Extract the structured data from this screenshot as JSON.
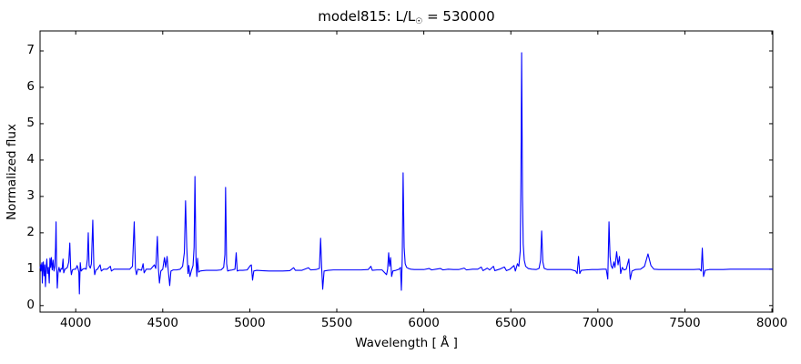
{
  "figure": {
    "title_prefix": "model815: L/L",
    "title_sub": "☉",
    "title_suffix": " = 530000",
    "background_color": "#ffffff",
    "frame_color": "#000000"
  },
  "chart_data": {
    "type": "line",
    "title": "model815: L/L☉ = 530000",
    "xlabel": "Wavelength [ Å ]",
    "ylabel": "Normalized flux",
    "xlim": [
      3795,
      8005
    ],
    "ylim": [
      -0.18,
      7.55
    ],
    "xticks": [
      4000,
      4500,
      5000,
      5500,
      6000,
      6500,
      7000,
      7500,
      8000
    ],
    "yticks": [
      0,
      1,
      2,
      3,
      4,
      5,
      6,
      7
    ],
    "grid": false,
    "legend": "none",
    "line_color": "#0000ff",
    "series": [
      {
        "name": "spectrum",
        "points": [
          [
            3795,
            1.02
          ],
          [
            3798,
            1.12
          ],
          [
            3800,
            0.95
          ],
          [
            3803,
            1.1
          ],
          [
            3806,
            1.18
          ],
          [
            3808,
            0.62
          ],
          [
            3811,
            1.02
          ],
          [
            3814,
            1.2
          ],
          [
            3818,
            0.82
          ],
          [
            3822,
            1.12
          ],
          [
            3826,
            0.52
          ],
          [
            3830,
            1.05
          ],
          [
            3834,
            1.28
          ],
          [
            3838,
            0.88
          ],
          [
            3843,
            1.05
          ],
          [
            3848,
            0.62
          ],
          [
            3852,
            1.3
          ],
          [
            3856,
            1.05
          ],
          [
            3860,
            1.32
          ],
          [
            3865,
            0.98
          ],
          [
            3870,
            1.25
          ],
          [
            3875,
            0.95
          ],
          [
            3880,
            1.08
          ],
          [
            3884,
            1.6
          ],
          [
            3887,
            2.3
          ],
          [
            3890,
            1.1
          ],
          [
            3894,
            0.48
          ],
          [
            3899,
            0.92
          ],
          [
            3904,
            1.05
          ],
          [
            3910,
            0.92
          ],
          [
            3916,
            1.02
          ],
          [
            3922,
            1.0
          ],
          [
            3927,
            1.28
          ],
          [
            3931,
            0.9
          ],
          [
            3938,
            1.0
          ],
          [
            3945,
            1.02
          ],
          [
            3952,
            1.05
          ],
          [
            3960,
            1.2
          ],
          [
            3966,
            1.72
          ],
          [
            3971,
            1.02
          ],
          [
            3975,
            0.85
          ],
          [
            3981,
            0.98
          ],
          [
            3990,
            1.0
          ],
          [
            4000,
            1.0
          ],
          [
            4008,
            1.1
          ],
          [
            4013,
            1.02
          ],
          [
            4018,
            0.92
          ],
          [
            4021,
            0.32
          ],
          [
            4026,
            1.18
          ],
          [
            4031,
            0.95
          ],
          [
            4040,
            1.0
          ],
          [
            4052,
            1.02
          ],
          [
            4060,
            1.0
          ],
          [
            4067,
            1.28
          ],
          [
            4072,
            2.0
          ],
          [
            4077,
            1.1
          ],
          [
            4084,
            1.03
          ],
          [
            4090,
            1.15
          ],
          [
            4098,
            2.35
          ],
          [
            4104,
            1.1
          ],
          [
            4109,
            0.85
          ],
          [
            4116,
            0.98
          ],
          [
            4125,
            1.0
          ],
          [
            4140,
            1.12
          ],
          [
            4147,
            0.95
          ],
          [
            4160,
            1.0
          ],
          [
            4180,
            1.0
          ],
          [
            4199,
            1.08
          ],
          [
            4205,
            0.95
          ],
          [
            4220,
            1.0
          ],
          [
            4250,
            1.0
          ],
          [
            4280,
            1.0
          ],
          [
            4310,
            1.0
          ],
          [
            4326,
            1.08
          ],
          [
            4336,
            2.3
          ],
          [
            4343,
            1.02
          ],
          [
            4349,
            0.85
          ],
          [
            4357,
            1.0
          ],
          [
            4378,
            0.97
          ],
          [
            4387,
            1.15
          ],
          [
            4393,
            0.9
          ],
          [
            4405,
            1.0
          ],
          [
            4430,
            1.0
          ],
          [
            4452,
            1.12
          ],
          [
            4460,
            1.02
          ],
          [
            4469,
            1.9
          ],
          [
            4475,
            1.02
          ],
          [
            4481,
            0.62
          ],
          [
            4489,
            0.95
          ],
          [
            4500,
            1.0
          ],
          [
            4510,
            1.32
          ],
          [
            4517,
            1.05
          ],
          [
            4525,
            1.35
          ],
          [
            4531,
            1.0
          ],
          [
            4540,
            0.55
          ],
          [
            4547,
            0.95
          ],
          [
            4560,
            0.98
          ],
          [
            4580,
            0.98
          ],
          [
            4600,
            1.0
          ],
          [
            4614,
            1.08
          ],
          [
            4624,
            1.45
          ],
          [
            4631,
            2.88
          ],
          [
            4638,
            1.6
          ],
          [
            4645,
            0.88
          ],
          [
            4650,
            1.1
          ],
          [
            4656,
            0.8
          ],
          [
            4664,
            0.95
          ],
          [
            4674,
            1.1
          ],
          [
            4680,
            1.6
          ],
          [
            4685,
            3.55
          ],
          [
            4691,
            1.25
          ],
          [
            4696,
            0.8
          ],
          [
            4700,
            1.3
          ],
          [
            4706,
            0.92
          ],
          [
            4715,
            0.95
          ],
          [
            4730,
            0.96
          ],
          [
            4750,
            0.97
          ],
          [
            4780,
            0.97
          ],
          [
            4810,
            0.97
          ],
          [
            4835,
            0.98
          ],
          [
            4850,
            1.05
          ],
          [
            4857,
            1.4
          ],
          [
            4861,
            3.25
          ],
          [
            4867,
            1.15
          ],
          [
            4873,
            0.95
          ],
          [
            4885,
            0.97
          ],
          [
            4900,
            0.98
          ],
          [
            4915,
            1.0
          ],
          [
            4922,
            1.45
          ],
          [
            4928,
            0.95
          ],
          [
            4940,
            0.97
          ],
          [
            4960,
            0.97
          ],
          [
            4985,
            0.98
          ],
          [
            5003,
            1.1
          ],
          [
            5009,
            1.12
          ],
          [
            5016,
            0.7
          ],
          [
            5023,
            0.95
          ],
          [
            5040,
            0.97
          ],
          [
            5070,
            0.96
          ],
          [
            5110,
            0.95
          ],
          [
            5150,
            0.95
          ],
          [
            5190,
            0.95
          ],
          [
            5230,
            0.96
          ],
          [
            5252,
            1.04
          ],
          [
            5262,
            0.97
          ],
          [
            5300,
            0.97
          ],
          [
            5337,
            1.04
          ],
          [
            5350,
            0.98
          ],
          [
            5380,
            0.99
          ],
          [
            5400,
            1.02
          ],
          [
            5407,
            1.85
          ],
          [
            5413,
            1.05
          ],
          [
            5419,
            0.45
          ],
          [
            5427,
            0.95
          ],
          [
            5450,
            0.97
          ],
          [
            5480,
            0.98
          ],
          [
            5520,
            0.98
          ],
          [
            5560,
            0.98
          ],
          [
            5600,
            0.98
          ],
          [
            5640,
            0.98
          ],
          [
            5680,
            0.99
          ],
          [
            5696,
            1.08
          ],
          [
            5704,
            0.97
          ],
          [
            5730,
            0.98
          ],
          [
            5760,
            0.98
          ],
          [
            5786,
            0.85
          ],
          [
            5792,
            1.0
          ],
          [
            5798,
            1.45
          ],
          [
            5803,
            1.08
          ],
          [
            5809,
            1.32
          ],
          [
            5815,
            0.8
          ],
          [
            5822,
            0.95
          ],
          [
            5840,
            0.97
          ],
          [
            5858,
            1.0
          ],
          [
            5866,
            1.05
          ],
          [
            5871,
            0.42
          ],
          [
            5876,
            1.3
          ],
          [
            5881,
            3.65
          ],
          [
            5887,
            1.6
          ],
          [
            5893,
            1.15
          ],
          [
            5901,
            1.05
          ],
          [
            5912,
            1.02
          ],
          [
            5925,
            1.0
          ],
          [
            5945,
            0.99
          ],
          [
            5970,
            0.99
          ],
          [
            6000,
            0.99
          ],
          [
            6030,
            1.02
          ],
          [
            6045,
            0.98
          ],
          [
            6070,
            1.0
          ],
          [
            6095,
            1.02
          ],
          [
            6110,
            0.98
          ],
          [
            6140,
            1.0
          ],
          [
            6170,
            0.99
          ],
          [
            6200,
            0.99
          ],
          [
            6232,
            1.03
          ],
          [
            6245,
            0.98
          ],
          [
            6280,
            1.0
          ],
          [
            6310,
            1.0
          ],
          [
            6330,
            1.06
          ],
          [
            6340,
            0.96
          ],
          [
            6365,
            1.03
          ],
          [
            6378,
            0.98
          ],
          [
            6400,
            1.08
          ],
          [
            6408,
            0.96
          ],
          [
            6435,
            1.0
          ],
          [
            6463,
            1.06
          ],
          [
            6475,
            0.96
          ],
          [
            6495,
            1.0
          ],
          [
            6518,
            1.1
          ],
          [
            6526,
            0.95
          ],
          [
            6538,
            1.15
          ],
          [
            6546,
            1.08
          ],
          [
            6554,
            1.5
          ],
          [
            6558,
            3.5
          ],
          [
            6562,
            6.95
          ],
          [
            6567,
            3.0
          ],
          [
            6571,
            1.7
          ],
          [
            6577,
            1.25
          ],
          [
            6585,
            1.08
          ],
          [
            6600,
            1.02
          ],
          [
            6620,
            1.0
          ],
          [
            6645,
            0.99
          ],
          [
            6662,
            1.02
          ],
          [
            6671,
            1.25
          ],
          [
            6677,
            2.05
          ],
          [
            6684,
            1.2
          ],
          [
            6692,
            1.02
          ],
          [
            6710,
            0.99
          ],
          [
            6740,
            0.99
          ],
          [
            6775,
            0.99
          ],
          [
            6810,
            0.99
          ],
          [
            6845,
            0.99
          ],
          [
            6872,
            0.95
          ],
          [
            6881,
            0.88
          ],
          [
            6889,
            1.35
          ],
          [
            6896,
            0.88
          ],
          [
            6905,
            0.97
          ],
          [
            6930,
            0.98
          ],
          [
            6965,
            0.99
          ],
          [
            7000,
            0.99
          ],
          [
            7030,
            1.0
          ],
          [
            7048,
            1.0
          ],
          [
            7057,
            0.73
          ],
          [
            7064,
            2.3
          ],
          [
            7070,
            1.35
          ],
          [
            7076,
            1.1
          ],
          [
            7084,
            1.02
          ],
          [
            7092,
            1.2
          ],
          [
            7098,
            1.05
          ],
          [
            7108,
            1.48
          ],
          [
            7116,
            1.12
          ],
          [
            7124,
            1.35
          ],
          [
            7131,
            0.88
          ],
          [
            7140,
            1.05
          ],
          [
            7150,
            0.98
          ],
          [
            7163,
            1.0
          ],
          [
            7178,
            1.28
          ],
          [
            7186,
            0.72
          ],
          [
            7196,
            0.95
          ],
          [
            7215,
            0.99
          ],
          [
            7245,
            1.0
          ],
          [
            7268,
            1.08
          ],
          [
            7288,
            1.42
          ],
          [
            7305,
            1.1
          ],
          [
            7322,
            1.0
          ],
          [
            7350,
            0.99
          ],
          [
            7390,
            0.99
          ],
          [
            7430,
            0.99
          ],
          [
            7470,
            0.99
          ],
          [
            7510,
            0.99
          ],
          [
            7550,
            0.99
          ],
          [
            7585,
            1.0
          ],
          [
            7594,
            0.95
          ],
          [
            7600,
            1.58
          ],
          [
            7607,
            0.8
          ],
          [
            7616,
            0.97
          ],
          [
            7640,
            0.99
          ],
          [
            7680,
            0.99
          ],
          [
            7720,
            0.99
          ],
          [
            7760,
            1.0
          ],
          [
            7800,
            1.0
          ],
          [
            7850,
            1.0
          ],
          [
            7900,
            1.0
          ],
          [
            7950,
            1.0
          ],
          [
            8005,
            1.0
          ]
        ]
      }
    ]
  }
}
